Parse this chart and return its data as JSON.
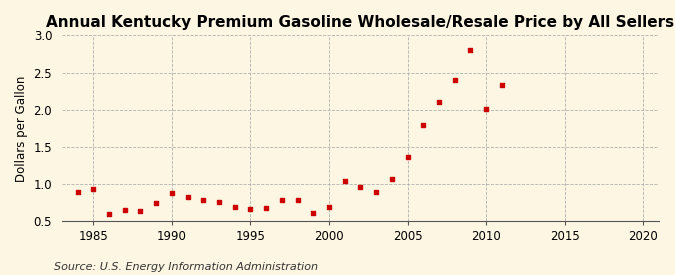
{
  "title": "Annual Kentucky Premium Gasoline Wholesale/Resale Price by All Sellers",
  "ylabel": "Dollars per Gallon",
  "source": "Source: U.S. Energy Information Administration",
  "background_color": "#fdf6e3",
  "marker_color": "#cc0000",
  "xlim": [
    1983,
    2021
  ],
  "ylim": [
    0.5,
    3.0
  ],
  "xticks": [
    1985,
    1990,
    1995,
    2000,
    2005,
    2010,
    2015,
    2020
  ],
  "yticks": [
    0.5,
    1.0,
    1.5,
    2.0,
    2.5,
    3.0
  ],
  "years": [
    1984,
    1985,
    1986,
    1987,
    1988,
    1989,
    1990,
    1991,
    1992,
    1993,
    1994,
    1995,
    1996,
    1997,
    1998,
    1999,
    2000,
    2001,
    2002,
    2003,
    2004,
    2005,
    2006,
    2007,
    2008,
    2009,
    2010,
    2011
  ],
  "values": [
    0.9,
    0.93,
    0.6,
    0.65,
    0.64,
    0.75,
    0.88,
    0.83,
    0.79,
    0.76,
    0.7,
    0.67,
    0.68,
    0.79,
    0.79,
    0.61,
    0.7,
    1.04,
    0.96,
    0.9,
    1.07,
    1.37,
    1.79,
    2.1,
    2.4,
    2.8,
    2.01,
    2.33
  ],
  "title_fontsize": 11,
  "label_fontsize": 8.5,
  "tick_fontsize": 8.5,
  "source_fontsize": 8
}
